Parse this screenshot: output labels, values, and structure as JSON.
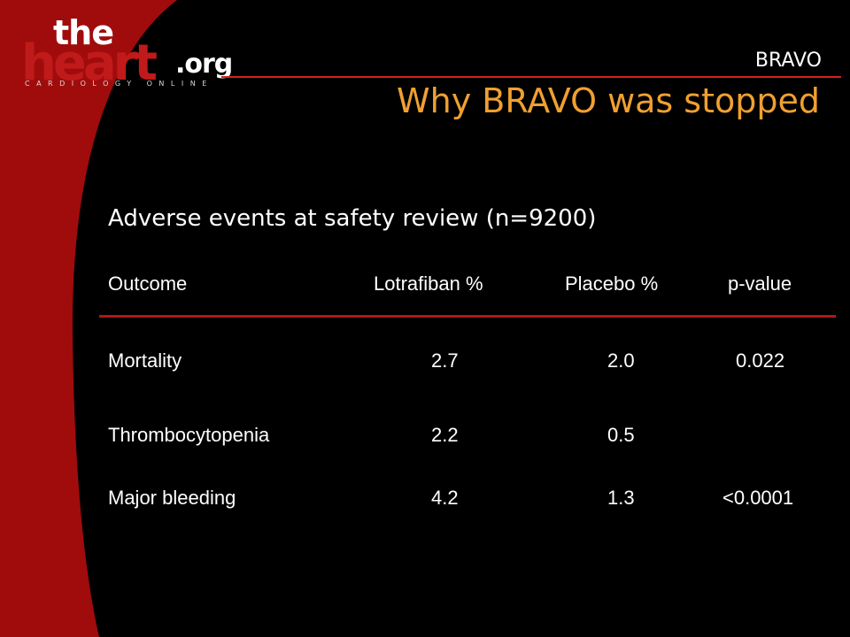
{
  "logo": {
    "the": "the",
    "heart": "heart",
    "org": ".org",
    "tagline": "CARDIOLOGY ONLINE"
  },
  "header": {
    "trial_tag": "BRAVO",
    "title": "Why BRAVO was stopped"
  },
  "subtitle": "Adverse events at safety review (n=9200)",
  "table": {
    "columns": [
      "Outcome",
      "Lotrafiban %",
      "Placebo %",
      "p-value"
    ],
    "rows": [
      {
        "outcome": "Mortality",
        "lotrafiban": "2.7",
        "placebo": "2.0",
        "p_value": "0.022"
      },
      {
        "outcome": "Thrombocytopenia",
        "lotrafiban": "2.2",
        "placebo": "0.5",
        "p_value": ""
      },
      {
        "outcome": "Major bleeding",
        "lotrafiban": "4.2",
        "placebo": "1.3",
        "p_value": "<0.0001"
      }
    ]
  },
  "colors": {
    "background": "#000000",
    "swoosh": "#a00c0c",
    "title": "#f0a030",
    "rule": "#b01818"
  }
}
